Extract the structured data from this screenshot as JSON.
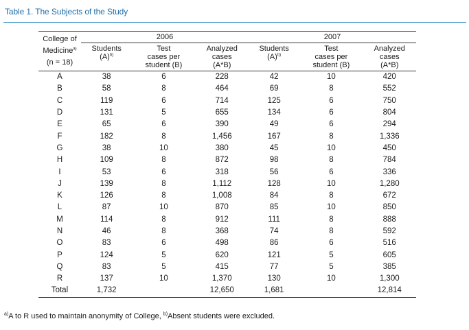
{
  "title": "Table 1. The Subjects of the Study",
  "header": {
    "college_label_1": "College of",
    "college_label_2": "Medicine",
    "college_label_sup": "a)",
    "college_label_3": "(n = 18)",
    "year_1": "2006",
    "year_2": "2007",
    "students": "Students",
    "students_sub": "(A)",
    "students_sup": "b)",
    "test_1": "Test",
    "test_2": "cases per",
    "test_3": "student (B)",
    "analyzed_1": "Analyzed",
    "analyzed_2": "cases",
    "analyzed_3": "(A*B)"
  },
  "rows": [
    [
      "A",
      "38",
      "6",
      "228",
      "42",
      "10",
      "420"
    ],
    [
      "B",
      "58",
      "8",
      "464",
      "69",
      "8",
      "552"
    ],
    [
      "C",
      "119",
      "6",
      "714",
      "125",
      "6",
      "750"
    ],
    [
      "D",
      "131",
      "5",
      "655",
      "134",
      "6",
      "804"
    ],
    [
      "E",
      "65",
      "6",
      "390",
      "49",
      "6",
      "294"
    ],
    [
      "F",
      "182",
      "8",
      "1,456",
      "167",
      "8",
      "1,336"
    ],
    [
      "G",
      "38",
      "10",
      "380",
      "45",
      "10",
      "450"
    ],
    [
      "H",
      "109",
      "8",
      "872",
      "98",
      "8",
      "784"
    ],
    [
      "I",
      "53",
      "6",
      "318",
      "56",
      "6",
      "336"
    ],
    [
      "J",
      "139",
      "8",
      "1,112",
      "128",
      "10",
      "1,280"
    ],
    [
      "K",
      "126",
      "8",
      "1,008",
      "84",
      "8",
      "672"
    ],
    [
      "L",
      "87",
      "10",
      "870",
      "85",
      "10",
      "850"
    ],
    [
      "M",
      "114",
      "8",
      "912",
      "111",
      "8",
      "888"
    ],
    [
      "N",
      "46",
      "8",
      "368",
      "74",
      "8",
      "592"
    ],
    [
      "O",
      "83",
      "6",
      "498",
      "86",
      "6",
      "516"
    ],
    [
      "P",
      "124",
      "5",
      "620",
      "121",
      "5",
      "605"
    ],
    [
      "Q",
      "83",
      "5",
      "415",
      "77",
      "5",
      "385"
    ],
    [
      "R",
      "137",
      "10",
      "1,370",
      "130",
      "10",
      "1,300"
    ],
    [
      "Total",
      "1,732",
      "",
      "12,650",
      "1,681",
      "",
      "12,814"
    ]
  ],
  "footnote": {
    "sup_a": "a)",
    "text_a": "A to R used to maintain anonymity of College, ",
    "sup_b": "b)",
    "text_b": "Absent students were excluded."
  }
}
